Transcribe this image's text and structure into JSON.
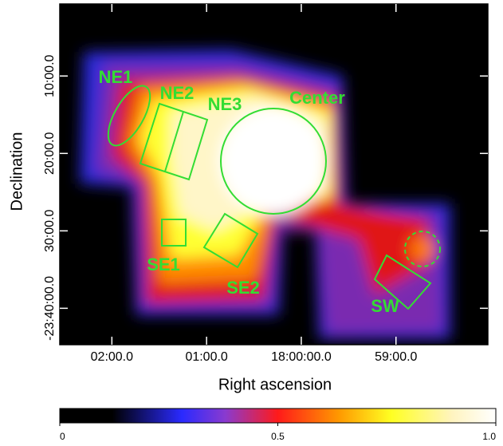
{
  "chart_data": {
    "type": "image",
    "xlabel": "Right ascension",
    "ylabel": "Declination",
    "xlim": [
      2.55,
      -1.97
    ],
    "xticks": [
      {
        "value": 2,
        "label": "02:00.0"
      },
      {
        "value": 1,
        "label": "01:00.0"
      },
      {
        "value": 0,
        "label": "18:00:00.0"
      },
      {
        "value": -1,
        "label": "59:00.0"
      }
    ],
    "ylim": [
      -0.7,
      -44.7
    ],
    "yticks": [
      {
        "value": -10,
        "label": "10:00.0"
      },
      {
        "value": -20,
        "label": "20:00.0"
      },
      {
        "value": -30,
        "label": "30:00.0"
      },
      {
        "value": -40,
        "label": "-23:40:00.0"
      }
    ],
    "annotations": [
      "NE1",
      "NE2",
      "NE3",
      "Center",
      "SE1",
      "SE2",
      "SW"
    ],
    "colorbar": {
      "lim": [
        0,
        1
      ],
      "ticks": [
        0,
        0.5,
        {
          "value": 1,
          "label": "1.0"
        }
      ]
    }
  }
}
